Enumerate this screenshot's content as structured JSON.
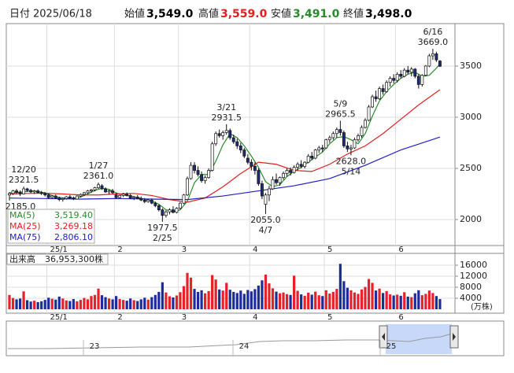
{
  "header": {
    "date_label": "日付",
    "date": "2025/06/18",
    "fields": [
      {
        "label": "始値",
        "value": "3,549.0",
        "color": "#000000"
      },
      {
        "label": "高値",
        "value": "3,559.0",
        "color": "#e02020"
      },
      {
        "label": "安値",
        "value": "3,491.0",
        "color": "#2a8a2a"
      },
      {
        "label": "終値",
        "value": "3,498.0",
        "color": "#000000"
      }
    ]
  },
  "chart_data": {
    "type": "candlestick",
    "open": [
      2240,
      2255,
      2280,
      2265,
      2250,
      2300,
      2285,
      2270,
      2280,
      2262,
      2255,
      2240,
      2215,
      2230,
      2210,
      2195,
      2205,
      2222,
      2210,
      2200,
      2230,
      2245,
      2262,
      2280,
      2290,
      2310,
      2330,
      2300,
      2270,
      2280,
      2240,
      2215,
      2235,
      2248,
      2235,
      2210,
      2220,
      2205,
      2190,
      2175,
      2190,
      2160,
      2135,
      2095,
      2040,
      2075,
      2095,
      2070,
      2110,
      2160,
      2240,
      2400,
      2530,
      2480,
      2440,
      2380,
      2410,
      2480,
      2740,
      2840,
      2820,
      2850,
      2870,
      2800,
      2760,
      2720,
      2680,
      2600,
      2560,
      2520,
      2480,
      2350,
      2150,
      2240,
      2300,
      2390,
      2360,
      2410,
      2450,
      2480,
      2460,
      2510,
      2540,
      2520,
      2560,
      2620,
      2600,
      2680,
      2700,
      2700,
      2780,
      2800,
      2840,
      2880,
      2850,
      2720,
      2690,
      2700,
      2780,
      2820,
      2900,
      2970,
      3100,
      3200,
      3180,
      3280,
      3250,
      3340,
      3380,
      3360,
      3420,
      3400,
      3460,
      3440,
      3470,
      3400,
      3320,
      3410,
      3500,
      3600,
      3620,
      3549
    ],
    "high": [
      2270,
      2290,
      2300,
      2285,
      2321.5,
      2310,
      2300,
      2290,
      2295,
      2280,
      2270,
      2255,
      2240,
      2245,
      2225,
      2215,
      2230,
      2240,
      2225,
      2235,
      2255,
      2270,
      2290,
      2300,
      2320,
      2361,
      2345,
      2315,
      2290,
      2300,
      2260,
      2245,
      2260,
      2265,
      2250,
      2230,
      2240,
      2225,
      2210,
      2200,
      2205,
      2175,
      2150,
      2110,
      2090,
      2110,
      2130,
      2120,
      2170,
      2250,
      2420,
      2560,
      2560,
      2520,
      2470,
      2430,
      2500,
      2760,
      2860,
      2880,
      2870,
      2931.5,
      2890,
      2830,
      2790,
      2750,
      2700,
      2640,
      2590,
      2560,
      2500,
      2380,
      2260,
      2330,
      2420,
      2450,
      2420,
      2470,
      2500,
      2510,
      2530,
      2560,
      2580,
      2570,
      2640,
      2660,
      2690,
      2720,
      2730,
      2790,
      2820,
      2860,
      2900,
      2965.5,
      2870,
      2760,
      2730,
      2800,
      2840,
      2920,
      2990,
      3120,
      3220,
      3260,
      3300,
      3320,
      3360,
      3400,
      3420,
      3440,
      3460,
      3480,
      3500,
      3490,
      3480,
      3420,
      3420,
      3510,
      3620,
      3669,
      3640,
      3559
    ],
    "low": [
      2185,
      2240,
      2250,
      2230,
      2245,
      2270,
      2260,
      2250,
      2255,
      2240,
      2225,
      2200,
      2205,
      2200,
      2180,
      2175,
      2195,
      2200,
      2190,
      2195,
      2215,
      2230,
      2250,
      2260,
      2275,
      2300,
      2290,
      2260,
      2245,
      2250,
      2200,
      2205,
      2220,
      2225,
      2200,
      2190,
      2200,
      2180,
      2160,
      2165,
      2150,
      2120,
      2080,
      1977.5,
      2020,
      2050,
      2060,
      2060,
      2100,
      2150,
      2230,
      2390,
      2450,
      2420,
      2360,
      2350,
      2400,
      2470,
      2720,
      2800,
      2780,
      2830,
      2780,
      2740,
      2690,
      2650,
      2600,
      2540,
      2480,
      2440,
      2330,
      2200,
      2055,
      2180,
      2290,
      2340,
      2330,
      2390,
      2420,
      2430,
      2450,
      2480,
      2500,
      2500,
      2550,
      2580,
      2590,
      2650,
      2660,
      2690,
      2750,
      2780,
      2800,
      2820,
      2700,
      2660,
      2628,
      2690,
      2760,
      2800,
      2890,
      2960,
      3090,
      3150,
      3170,
      3220,
      3240,
      3300,
      3330,
      3340,
      3380,
      3390,
      3420,
      3400,
      3380,
      3280,
      3300,
      3400,
      3490,
      3560,
      3540,
      3491
    ],
    "close": [
      2255,
      2280,
      2265,
      2250,
      2300,
      2285,
      2270,
      2280,
      2262,
      2255,
      2240,
      2215,
      2230,
      2210,
      2195,
      2205,
      2222,
      2210,
      2200,
      2230,
      2245,
      2262,
      2280,
      2290,
      2310,
      2340,
      2300,
      2270,
      2280,
      2262,
      2215,
      2235,
      2248,
      2235,
      2210,
      2220,
      2205,
      2190,
      2175,
      2190,
      2160,
      2135,
      2095,
      2040,
      2075,
      2095,
      2070,
      2110,
      2160,
      2240,
      2400,
      2530,
      2480,
      2440,
      2380,
      2410,
      2480,
      2740,
      2840,
      2820,
      2850,
      2870,
      2800,
      2760,
      2720,
      2680,
      2620,
      2560,
      2520,
      2480,
      2350,
      2230,
      2240,
      2300,
      2390,
      2360,
      2410,
      2450,
      2480,
      2460,
      2510,
      2540,
      2520,
      2560,
      2620,
      2600,
      2680,
      2700,
      2690,
      2780,
      2800,
      2840,
      2880,
      2850,
      2720,
      2690,
      2700,
      2780,
      2820,
      2900,
      2970,
      3100,
      3200,
      3180,
      3280,
      3250,
      3340,
      3380,
      3360,
      3420,
      3400,
      3460,
      3440,
      3470,
      3400,
      3320,
      3410,
      3500,
      3600,
      3620,
      3560,
      3498
    ],
    "up_color": "#ffffff",
    "down_color": "#1c2d78",
    "ylim": [
      1746,
      3915
    ],
    "yticks": [
      2000,
      2500,
      3000,
      3500
    ],
    "grid": true,
    "xticks": [
      {
        "value": 11,
        "label": "25/1"
      },
      {
        "value": 30,
        "label": "2"
      },
      {
        "value": 48,
        "label": "3"
      },
      {
        "value": 68,
        "label": "4"
      },
      {
        "value": 89,
        "label": "5"
      },
      {
        "value": 109,
        "label": "6"
      }
    ],
    "series": [
      {
        "name": "MA(5)",
        "color": "#2a8a2a",
        "x": [
          0,
          2,
          4,
          6,
          8,
          10,
          12,
          14,
          16,
          18,
          20,
          22,
          24,
          26,
          28,
          30,
          32,
          34,
          36,
          38,
          40,
          42,
          44,
          46,
          48,
          50,
          52,
          54,
          56,
          58,
          60,
          62,
          64,
          66,
          68,
          70,
          72,
          74,
          76,
          78,
          80,
          82,
          84,
          86,
          88,
          90,
          92,
          94,
          96,
          98,
          100,
          102,
          104,
          106,
          108,
          110,
          112,
          114,
          116,
          118,
          120
        ],
        "values": [
          2260,
          2265,
          2270,
          2280,
          2275,
          2260,
          2235,
          2215,
          2210,
          2210,
          2220,
          2250,
          2285,
          2305,
          2295,
          2260,
          2240,
          2230,
          2215,
          2200,
          2180,
          2150,
          2095,
          2075,
          2095,
          2180,
          2360,
          2440,
          2440,
          2570,
          2730,
          2840,
          2800,
          2720,
          2620,
          2510,
          2370,
          2320,
          2340,
          2420,
          2470,
          2510,
          2560,
          2610,
          2660,
          2740,
          2800,
          2810,
          2780,
          2740,
          2840,
          3010,
          3160,
          3250,
          3320,
          3380,
          3420,
          3440,
          3400,
          3410,
          3480
        ],
        "latest": {
          "value": 3519.4,
          "label": "3,519.40"
        }
      },
      {
        "name": "MA(25)",
        "color": "#e02020",
        "x": [
          0,
          5,
          10,
          15,
          20,
          25,
          30,
          35,
          40,
          45,
          50,
          55,
          60,
          65,
          70,
          75,
          80,
          85,
          90,
          95,
          100,
          105,
          110,
          115
        ],
        "values": [
          2250,
          2255,
          2258,
          2250,
          2240,
          2240,
          2250,
          2255,
          2235,
          2195,
          2170,
          2210,
          2320,
          2450,
          2560,
          2540,
          2480,
          2470,
          2540,
          2640,
          2720,
          2840,
          2980,
          3120
        ],
        "latest": {
          "value": 3269.18,
          "label": "3,269.18"
        }
      },
      {
        "name": "MA(75)",
        "color": "#2020c0",
        "x": [
          0,
          10,
          20,
          30,
          40,
          50,
          60,
          70,
          80,
          90,
          100,
          110
        ],
        "values": [
          2210,
          2205,
          2200,
          2205,
          2200,
          2195,
          2230,
          2280,
          2330,
          2400,
          2530,
          2680
        ],
        "latest": {
          "value": 2806.1,
          "label": "2,806.10"
        }
      }
    ],
    "annotations": [
      {
        "date": "12/20",
        "price": 2321.5
      },
      {
        "price": {
          "value": 2185,
          "label": "2185.0"
        }
      },
      {
        "date": "1/27",
        "price": {
          "value": 2361,
          "label": "2361.0"
        }
      },
      {
        "date": "2/25",
        "price": 1977.5
      },
      {
        "date": "3/21",
        "price": 2931.5
      },
      {
        "date": "4/7",
        "price": {
          "value": 2055,
          "label": "2055.0"
        }
      },
      {
        "date": "5/9",
        "price": 2965.5
      },
      {
        "date": "5/14",
        "price": {
          "value": 2628,
          "label": "2628.0"
        }
      },
      {
        "date": "6/16",
        "price": {
          "value": 3669,
          "label": "3669.0"
        }
      }
    ],
    "volume": {
      "title": "出来高",
      "total": "36,953,300株",
      "unit": "(万株)",
      "up_color": "#e8202a",
      "down_color": "#1c2d9a",
      "ylim": [
        0,
        20000
      ],
      "yticks": [
        4000,
        8000,
        12000,
        16000
      ],
      "values": [
        5200,
        4100,
        3600,
        3900,
        6500,
        3300,
        2800,
        3100,
        2600,
        2900,
        3400,
        4200,
        3800,
        3500,
        4600,
        3900,
        3200,
        3000,
        3700,
        2900,
        3400,
        4100,
        3600,
        4800,
        5200,
        7500,
        5100,
        4400,
        3900,
        3600,
        4800,
        3700,
        3400,
        3100,
        3900,
        3300,
        3000,
        3600,
        4200,
        3500,
        4400,
        5200,
        6300,
        9800,
        6100,
        4700,
        4300,
        5000,
        6200,
        8400,
        13200,
        11500,
        7400,
        6300,
        6900,
        5800,
        6600,
        12400,
        10800,
        7200,
        6800,
        9600,
        7100,
        6300,
        5900,
        6800,
        5600,
        7000,
        6500,
        7300,
        8600,
        10500,
        12600,
        9400,
        7600,
        6400,
        5800,
        6100,
        5500,
        5200,
        12200,
        6700,
        5400,
        4900,
        6000,
        5300,
        6400,
        5100,
        4800,
        6900,
        5700,
        6300,
        7400,
        16500,
        10200,
        7800,
        6900,
        6100,
        5600,
        7200,
        8100,
        11000,
        9600,
        6800,
        7500,
        5900,
        6600,
        5400,
        5000,
        5300,
        4900,
        6200,
        4600,
        4400,
        5800,
        6900,
        5100,
        5600,
        6800,
        5900,
        4800,
        3695
      ]
    }
  },
  "navigator": {
    "labels": [
      "23",
      "24",
      "25"
    ]
  }
}
